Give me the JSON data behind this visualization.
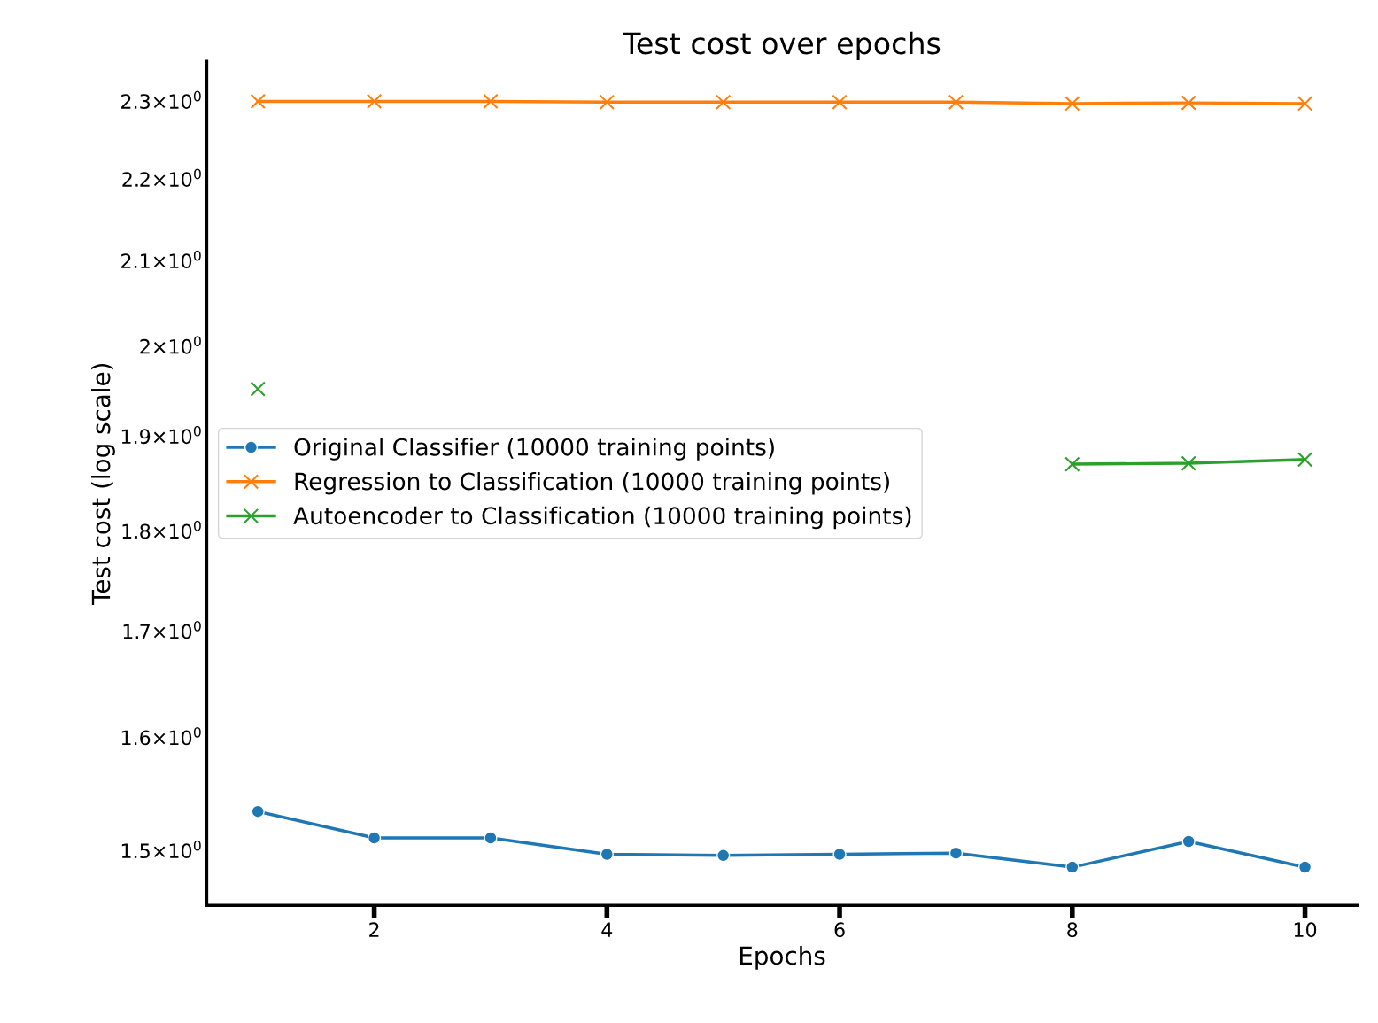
{
  "chart_data": {
    "type": "line",
    "title": "Test cost over epochs",
    "xlabel": "Epochs",
    "ylabel": "Test cost (log scale)",
    "x": [
      1,
      2,
      3,
      4,
      5,
      6,
      7,
      8,
      9,
      10
    ],
    "series": [
      {
        "name": "Original Classifier (10000 training points)",
        "color": "#1f77b4",
        "marker": "circle",
        "values": [
          1.534,
          1.511,
          1.511,
          1.497,
          1.496,
          1.497,
          1.498,
          1.486,
          1.508,
          1.486
        ]
      },
      {
        "name": "Regression to Classification (10000 training points)",
        "color": "#ff7f0e",
        "marker": "cross",
        "values": [
          2.3,
          2.3,
          2.3,
          2.299,
          2.299,
          2.299,
          2.299,
          2.297,
          2.298,
          2.297
        ]
      },
      {
        "name": "Autoencoder to Classification (10000 training points)",
        "color": "#2ca02c",
        "marker": "cross",
        "values": [
          1.952,
          null,
          null,
          null,
          null,
          null,
          null,
          1.87,
          1.871,
          1.875
        ]
      }
    ],
    "log": "y",
    "xlim": [
      0.56,
      10.45
    ],
    "ylim": [
      1.454,
      2.353
    ],
    "xticks": [
      2,
      4,
      6,
      8,
      10
    ],
    "yticks": [
      {
        "value": 1.5,
        "label": "1.5×10$^{0}$"
      },
      {
        "value": 1.6,
        "label": "1.6×10$^{0}$"
      },
      {
        "value": 1.7,
        "label": "1.7×10$^{0}$"
      },
      {
        "value": 1.8,
        "label": "1.8×10$^{0}$"
      },
      {
        "value": 1.9,
        "label": "1.9×10$^{0}$"
      },
      {
        "value": 2.0,
        "label": "2×10$^{0}$"
      },
      {
        "value": 2.1,
        "label": "2.1×10$^{0}$"
      },
      {
        "value": 2.2,
        "label": "2.2×10$^{0}$"
      },
      {
        "value": 2.3,
        "label": "2.3×10$^{0}$"
      }
    ],
    "grid": false,
    "legend": "center left",
    "line_style": "solid"
  }
}
